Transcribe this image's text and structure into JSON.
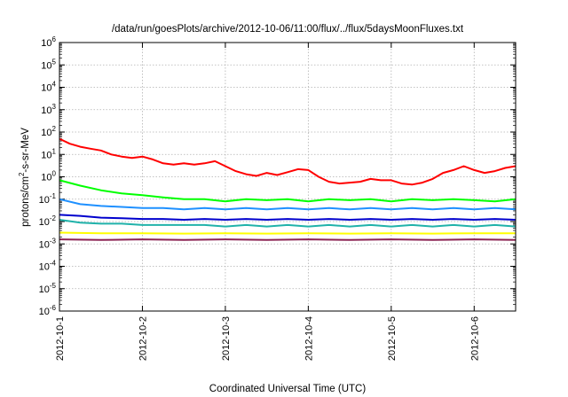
{
  "chart_data": {
    "type": "line",
    "title": "/data/run/goesPlots/archive/2012-10-06/11:00/flux/../flux/5daysMoonFluxes.txt",
    "xlabel": "Coordinated Universal Time (UTC)",
    "ylabel": {
      "base": "protons/cm",
      "sup": "2",
      "rest": "-s-sr-MeV"
    },
    "y_scale": "log",
    "ylim": [
      1e-06,
      1000000.0
    ],
    "y_ticks": [
      {
        "value": 1e-06,
        "base": "10",
        "exp": "-6"
      },
      {
        "value": 1e-05,
        "base": "10",
        "exp": "-5"
      },
      {
        "value": 0.0001,
        "base": "10",
        "exp": "-4"
      },
      {
        "value": 0.001,
        "base": "10",
        "exp": "-3"
      },
      {
        "value": 0.01,
        "base": "10",
        "exp": "-2"
      },
      {
        "value": 0.1,
        "base": "10",
        "exp": "-1"
      },
      {
        "value": 1,
        "base": "10",
        "exp": "0"
      },
      {
        "value": 10,
        "base": "10",
        "exp": "1"
      },
      {
        "value": 100,
        "base": "10",
        "exp": "2"
      },
      {
        "value": 1000,
        "base": "10",
        "exp": "3"
      },
      {
        "value": 10000,
        "base": "10",
        "exp": "4"
      },
      {
        "value": 100000,
        "base": "10",
        "exp": "5"
      },
      {
        "value": 1000000,
        "base": "10",
        "exp": "6"
      }
    ],
    "x_ticks": [
      "2012-10-1",
      "2012-10-2",
      "2012-10-3",
      "2012-10-4",
      "2012-10-5",
      "2012-10-6"
    ],
    "xlim": [
      "2012-10-01T00:00",
      "2012-10-06T12:00"
    ],
    "grid": true,
    "series": [
      {
        "color": "#ff0000",
        "x": [
          "2012-10-01T00:00",
          "2012-10-01T03:00",
          "2012-10-01T06:00",
          "2012-10-01T09:00",
          "2012-10-01T12:00",
          "2012-10-01T15:00",
          "2012-10-01T18:00",
          "2012-10-01T21:00",
          "2012-10-02T00:00",
          "2012-10-02T03:00",
          "2012-10-02T06:00",
          "2012-10-02T09:00",
          "2012-10-02T12:00",
          "2012-10-02T15:00",
          "2012-10-02T18:00",
          "2012-10-02T21:00",
          "2012-10-03T00:00",
          "2012-10-03T03:00",
          "2012-10-03T06:00",
          "2012-10-03T09:00",
          "2012-10-03T12:00",
          "2012-10-03T15:00",
          "2012-10-03T18:00",
          "2012-10-03T21:00",
          "2012-10-04T00:00",
          "2012-10-04T03:00",
          "2012-10-04T06:00",
          "2012-10-04T09:00",
          "2012-10-04T12:00",
          "2012-10-04T15:00",
          "2012-10-04T18:00",
          "2012-10-04T21:00",
          "2012-10-05T00:00",
          "2012-10-05T03:00",
          "2012-10-05T06:00",
          "2012-10-05T09:00",
          "2012-10-05T12:00",
          "2012-10-05T15:00",
          "2012-10-05T18:00",
          "2012-10-05T21:00",
          "2012-10-06T00:00",
          "2012-10-06T03:00",
          "2012-10-06T06:00",
          "2012-10-06T09:00",
          "2012-10-06T12:00"
        ],
        "values": [
          50,
          30,
          22,
          18,
          15,
          10,
          8,
          7,
          8,
          6,
          4,
          3.5,
          4,
          3.5,
          4,
          5,
          3,
          1.8,
          1.3,
          1.1,
          1.5,
          1.2,
          1.6,
          2.2,
          2,
          1,
          0.6,
          0.5,
          0.55,
          0.6,
          0.8,
          0.7,
          0.7,
          0.5,
          0.45,
          0.55,
          0.8,
          1.5,
          2,
          3,
          2,
          1.5,
          1.8,
          2.5,
          3
        ]
      },
      {
        "color": "#00ff00",
        "x": [
          "2012-10-01T00:00",
          "2012-10-01T06:00",
          "2012-10-01T12:00",
          "2012-10-01T18:00",
          "2012-10-02T00:00",
          "2012-10-02T06:00",
          "2012-10-02T12:00",
          "2012-10-02T18:00",
          "2012-10-03T00:00",
          "2012-10-03T06:00",
          "2012-10-03T12:00",
          "2012-10-03T18:00",
          "2012-10-04T00:00",
          "2012-10-04T06:00",
          "2012-10-04T12:00",
          "2012-10-04T18:00",
          "2012-10-05T00:00",
          "2012-10-05T06:00",
          "2012-10-05T12:00",
          "2012-10-05T18:00",
          "2012-10-06T00:00",
          "2012-10-06T06:00",
          "2012-10-06T12:00"
        ],
        "values": [
          0.7,
          0.4,
          0.25,
          0.18,
          0.15,
          0.12,
          0.1,
          0.1,
          0.08,
          0.1,
          0.09,
          0.1,
          0.08,
          0.1,
          0.09,
          0.1,
          0.08,
          0.1,
          0.09,
          0.1,
          0.09,
          0.08,
          0.1
        ]
      },
      {
        "color": "#1e90ff",
        "x": [
          "2012-10-01T00:00",
          "2012-10-01T06:00",
          "2012-10-01T12:00",
          "2012-10-01T18:00",
          "2012-10-02T00:00",
          "2012-10-02T06:00",
          "2012-10-02T12:00",
          "2012-10-02T18:00",
          "2012-10-03T00:00",
          "2012-10-03T06:00",
          "2012-10-03T12:00",
          "2012-10-03T18:00",
          "2012-10-04T00:00",
          "2012-10-04T06:00",
          "2012-10-04T12:00",
          "2012-10-04T18:00",
          "2012-10-05T00:00",
          "2012-10-05T06:00",
          "2012-10-05T12:00",
          "2012-10-05T18:00",
          "2012-10-06T00:00",
          "2012-10-06T06:00",
          "2012-10-06T12:00"
        ],
        "values": [
          0.1,
          0.06,
          0.05,
          0.045,
          0.04,
          0.04,
          0.035,
          0.04,
          0.035,
          0.04,
          0.035,
          0.04,
          0.035,
          0.04,
          0.035,
          0.04,
          0.035,
          0.04,
          0.035,
          0.04,
          0.035,
          0.04,
          0.035
        ]
      },
      {
        "color": "#0000cd",
        "x": [
          "2012-10-01T00:00",
          "2012-10-01T06:00",
          "2012-10-01T12:00",
          "2012-10-01T18:00",
          "2012-10-02T00:00",
          "2012-10-02T06:00",
          "2012-10-02T12:00",
          "2012-10-02T18:00",
          "2012-10-03T00:00",
          "2012-10-03T06:00",
          "2012-10-03T12:00",
          "2012-10-03T18:00",
          "2012-10-04T00:00",
          "2012-10-04T06:00",
          "2012-10-04T12:00",
          "2012-10-04T18:00",
          "2012-10-05T00:00",
          "2012-10-05T06:00",
          "2012-10-05T12:00",
          "2012-10-05T18:00",
          "2012-10-06T00:00",
          "2012-10-06T06:00",
          "2012-10-06T12:00"
        ],
        "values": [
          0.02,
          0.018,
          0.015,
          0.014,
          0.013,
          0.013,
          0.012,
          0.013,
          0.012,
          0.013,
          0.012,
          0.013,
          0.012,
          0.013,
          0.012,
          0.013,
          0.012,
          0.013,
          0.012,
          0.013,
          0.012,
          0.013,
          0.012
        ]
      },
      {
        "color": "#20b2aa",
        "x": [
          "2012-10-01T00:00",
          "2012-10-01T06:00",
          "2012-10-01T12:00",
          "2012-10-01T18:00",
          "2012-10-02T00:00",
          "2012-10-02T06:00",
          "2012-10-02T12:00",
          "2012-10-02T18:00",
          "2012-10-03T00:00",
          "2012-10-03T06:00",
          "2012-10-03T12:00",
          "2012-10-03T18:00",
          "2012-10-04T00:00",
          "2012-10-04T06:00",
          "2012-10-04T12:00",
          "2012-10-04T18:00",
          "2012-10-05T00:00",
          "2012-10-05T06:00",
          "2012-10-05T12:00",
          "2012-10-05T18:00",
          "2012-10-06T00:00",
          "2012-10-06T06:00",
          "2012-10-06T12:00"
        ],
        "values": [
          0.012,
          0.009,
          0.008,
          0.008,
          0.007,
          0.007,
          0.007,
          0.007,
          0.006,
          0.007,
          0.006,
          0.007,
          0.006,
          0.007,
          0.006,
          0.007,
          0.006,
          0.007,
          0.006,
          0.007,
          0.006,
          0.007,
          0.006
        ]
      },
      {
        "color": "#ffff00",
        "x": [
          "2012-10-01T00:00",
          "2012-10-01T12:00",
          "2012-10-02T00:00",
          "2012-10-02T12:00",
          "2012-10-03T00:00",
          "2012-10-03T12:00",
          "2012-10-04T00:00",
          "2012-10-04T12:00",
          "2012-10-05T00:00",
          "2012-10-05T12:00",
          "2012-10-06T00:00",
          "2012-10-06T12:00"
        ],
        "values": [
          0.0032,
          0.003,
          0.003,
          0.0029,
          0.003,
          0.0029,
          0.003,
          0.0029,
          0.003,
          0.0029,
          0.003,
          0.003
        ]
      },
      {
        "color": "#8b2252",
        "x": [
          "2012-10-01T00:00",
          "2012-10-01T12:00",
          "2012-10-02T00:00",
          "2012-10-02T12:00",
          "2012-10-03T00:00",
          "2012-10-03T12:00",
          "2012-10-04T00:00",
          "2012-10-04T12:00",
          "2012-10-05T00:00",
          "2012-10-05T12:00",
          "2012-10-06T00:00",
          "2012-10-06T12:00"
        ],
        "values": [
          0.0016,
          0.0015,
          0.0016,
          0.0015,
          0.0016,
          0.0015,
          0.0016,
          0.0015,
          0.0016,
          0.0015,
          0.0016,
          0.0015
        ]
      }
    ]
  }
}
